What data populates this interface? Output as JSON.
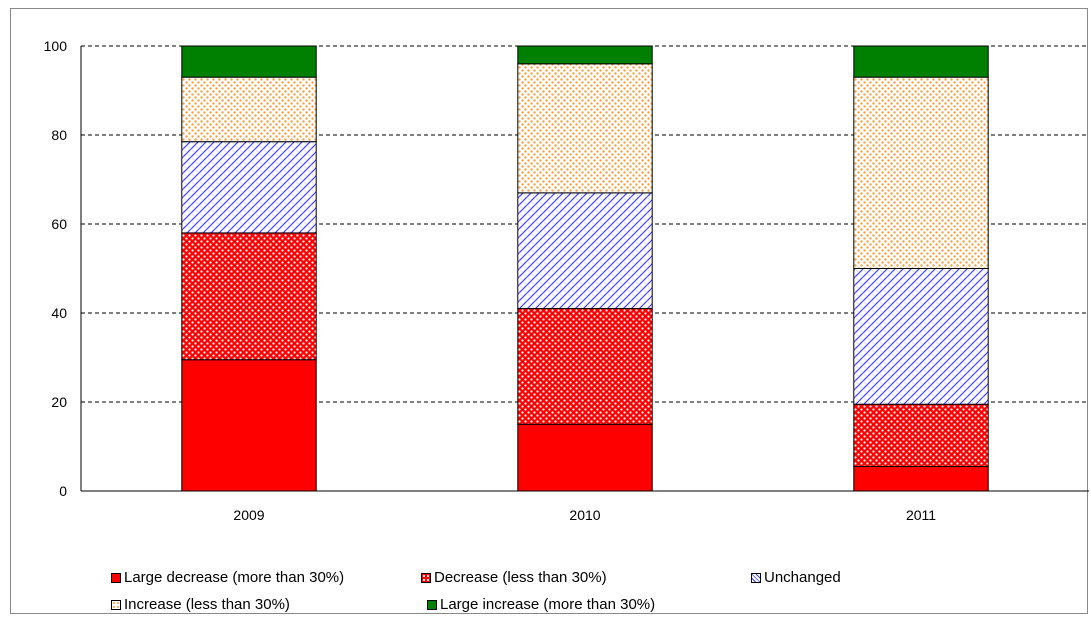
{
  "chart_data": {
    "type": "bar",
    "stacked": true,
    "categories": [
      "2009",
      "2010",
      "2011"
    ],
    "ylim": [
      0,
      100
    ],
    "yticks": [
      0,
      20,
      40,
      60,
      80,
      100
    ],
    "grid": "horizontal dashed",
    "legend_position": "bottom",
    "series": [
      {
        "name": "Large decrease (more than 30%)",
        "values": [
          29.5,
          15,
          5.5
        ],
        "color": "#ff0000",
        "pattern": "solid"
      },
      {
        "name": "Decrease (less than 30%)",
        "values": [
          28.5,
          26,
          14
        ],
        "color": "#ff0000",
        "pattern": "dots"
      },
      {
        "name": "Unchanged",
        "values": [
          20.5,
          26,
          30.5
        ],
        "color": "#4040ff",
        "pattern": "diagonal-hatch"
      },
      {
        "name": "Increase (less than 30%)",
        "values": [
          14.5,
          29,
          43
        ],
        "color": "#f5a040",
        "pattern": "speckle"
      },
      {
        "name": "Large increase (more than 30%)",
        "values": [
          7,
          4,
          7
        ],
        "color": "#008000",
        "pattern": "solid"
      }
    ]
  }
}
